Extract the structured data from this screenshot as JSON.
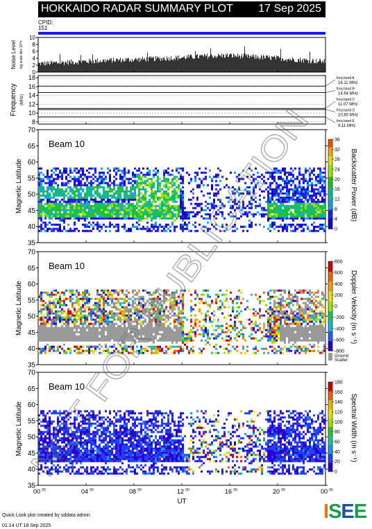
{
  "header": {
    "title": "HOKKAIDO RADAR SUMMARY PLOT",
    "date": "17 Sep 2025"
  },
  "cpid": {
    "label": "CPID:",
    "value": "151"
  },
  "noise": {
    "ylabel": "Noise Level",
    "ylabel_small": "log scale dex 10^x",
    "yticks": [
      "0",
      "2",
      "4",
      "6",
      "8",
      "10"
    ],
    "ylim": [
      0,
      10
    ]
  },
  "frequency": {
    "ylabel": "Frequency",
    "unit": "(MHz)",
    "yticks": [
      "8",
      "10",
      "12",
      "14",
      "16",
      "18"
    ],
    "ylim": [
      7.5,
      18.5
    ],
    "bands": [
      {
        "name": "freq band A",
        "value": "16.11 MHz",
        "mhz": 16.11
      },
      {
        "name": "freq band B",
        "value": "14.64 MHz",
        "mhz": 14.64
      },
      {
        "name": "freq band C",
        "value": "11.07 MHz",
        "mhz": 11.07
      },
      {
        "name": "freq band D",
        "value": "10.80 MHz",
        "mhz": 10.8
      },
      {
        "name": "freq band E",
        "value": "9.11 MHz",
        "mhz": 9.11
      }
    ]
  },
  "xaxis": {
    "label": "UT",
    "ticks": [
      "00",
      "04",
      "08",
      "12",
      "16",
      "20",
      "00"
    ],
    "tick_sup": "00"
  },
  "panels": [
    {
      "beam": "Beam 10",
      "ylabel": "Magnetic Latitude",
      "yticks": [
        "35",
        "40",
        "45",
        "50",
        "55",
        "60",
        "65",
        "70"
      ],
      "cbar_title": "Backscatter Power (dB)",
      "cbar_ticks": [
        "0",
        "4",
        "8",
        "12",
        "16",
        "20",
        "24",
        "28",
        "32",
        "36"
      ]
    },
    {
      "beam": "Beam 10",
      "ylabel": "Magnetic Latitude",
      "yticks": [
        "35",
        "40",
        "45",
        "50",
        "55",
        "60",
        "65",
        "70"
      ],
      "cbar_title": "Doppler Velocity (m s⁻¹)",
      "cbar_ticks": [
        "800",
        "600",
        "400",
        "200",
        "0",
        "-200",
        "-400",
        "-600",
        "-800"
      ],
      "ground_label": [
        "Ground",
        "Scatter"
      ]
    },
    {
      "beam": "Beam 10",
      "ylabel": "Magnetic Latitude",
      "yticks": [
        "35",
        "40",
        "45",
        "50",
        "55",
        "60",
        "65",
        "70"
      ],
      "cbar_title": "Spectral Width (m s⁻¹)",
      "cbar_ticks": [
        "0",
        "20",
        "40",
        "60",
        "80",
        "100",
        "120",
        "140",
        "160",
        "180"
      ]
    }
  ],
  "watermark": "NOT FOR PUBLICATION",
  "footer": {
    "credit": "Quick Look plot created by sddata admin",
    "created": "01:14 UT 18 Sep 2025"
  },
  "logo": {
    "letters": [
      "I",
      "S",
      "E",
      "E"
    ]
  },
  "chart_data": [
    {
      "type": "bar",
      "title": "Noise Level",
      "xlabel": "UT",
      "ylim": [
        0,
        10
      ],
      "x": [
        0,
        2,
        4,
        6,
        8,
        10,
        12,
        14,
        16,
        18,
        20,
        22,
        24
      ],
      "values": [
        2.4,
        2.8,
        3.1,
        3.4,
        3.6,
        3.9,
        4.2,
        4.6,
        4.8,
        4.4,
        4.0,
        3.5,
        3.0
      ]
    },
    {
      "type": "line",
      "title": "Frequency",
      "ylim": [
        7.5,
        18.5
      ],
      "series": [
        {
          "name": "freq band A",
          "values": [
            16.11
          ]
        },
        {
          "name": "freq band B",
          "values": [
            14.64
          ]
        },
        {
          "name": "freq band C",
          "values": [
            11.07
          ]
        },
        {
          "name": "freq band D",
          "values": [
            10.8
          ]
        },
        {
          "name": "freq band E",
          "values": [
            9.11
          ]
        }
      ]
    },
    {
      "type": "heatmap",
      "title": "Backscatter Power (dB)",
      "xlabel": "UT",
      "ylabel": "Magnetic Latitude",
      "xlim": [
        0,
        24
      ],
      "ylim": [
        35,
        70
      ],
      "zlim": [
        0,
        36
      ]
    },
    {
      "type": "heatmap",
      "title": "Doppler Velocity (m s⁻¹)",
      "xlabel": "UT",
      "ylabel": "Magnetic Latitude",
      "xlim": [
        0,
        24
      ],
      "ylim": [
        35,
        70
      ],
      "zlim": [
        -800,
        800
      ]
    },
    {
      "type": "heatmap",
      "title": "Spectral Width (m s⁻¹)",
      "xlabel": "UT",
      "ylabel": "Magnetic Latitude",
      "xlim": [
        0,
        24
      ],
      "ylim": [
        35,
        70
      ],
      "zlim": [
        0,
        180
      ]
    }
  ]
}
